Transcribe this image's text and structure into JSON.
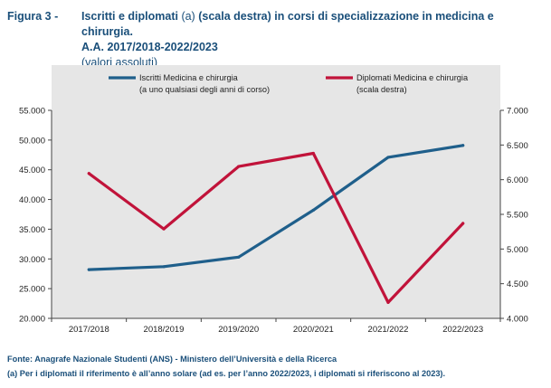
{
  "header": {
    "figure_number": "Figura 3 -",
    "title_part1": "Iscritti e diplomati",
    "title_note": " (a) ",
    "title_part2": "(scala destra) in corsi di specializzazione in medicina e chirurgia.",
    "period": "A.A. 2017/2018-2022/2023",
    "units": "(valori assoluti)"
  },
  "chart_data": {
    "type": "line",
    "categories": [
      "2017/2018",
      "2018/2019",
      "2019/2020",
      "2020/2021",
      "2021/2022",
      "2022/2023"
    ],
    "series": [
      {
        "name": "Iscritti Medicina e chirurgia",
        "name_line2": "(a uno qualsiasi degli anni di corso)",
        "axis": "left",
        "color": "#1f5f8b",
        "values": [
          28200,
          28700,
          30300,
          38200,
          47100,
          49100
        ]
      },
      {
        "name": "Diplomati Medicina e chirurgia",
        "name_line2": "(scala destra)",
        "axis": "right",
        "color": "#c1133a",
        "values": [
          6090,
          5290,
          6190,
          6380,
          4230,
          5370
        ]
      }
    ],
    "left_axis": {
      "ylim": [
        20000,
        55000
      ],
      "ticks": [
        20000,
        25000,
        30000,
        35000,
        40000,
        45000,
        50000,
        55000
      ],
      "tick_labels": [
        "20.000",
        "25.000",
        "30.000",
        "35.000",
        "40.000",
        "45.000",
        "50.000",
        "55.000"
      ]
    },
    "right_axis": {
      "ylim": [
        4000,
        7000
      ],
      "ticks": [
        4000,
        4500,
        5000,
        5500,
        6000,
        6500,
        7000
      ],
      "tick_labels": [
        "4.000",
        "4.500",
        "5.000",
        "5.500",
        "6.000",
        "6.500",
        "7.000"
      ]
    },
    "legend_position": "top",
    "grid": false,
    "plot_background": "#e6e6e6"
  },
  "footer": {
    "source": "Fonte: Anagrafe Nazionale Studenti (ANS) - Ministero dell’Università e della Ricerca",
    "note": "(a) Per i diplomati il riferimento è all’anno solare (ad es. per l’anno 2022/2023, i diplomati si riferiscono al 2023)."
  }
}
